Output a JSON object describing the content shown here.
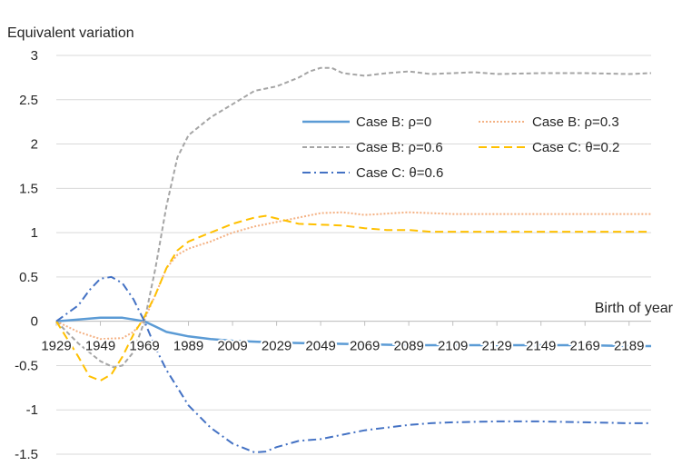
{
  "chart_data": {
    "type": "line",
    "ylabel": "Equivalent variation",
    "xlabel": "Birth of year",
    "ylim": [
      -1.5,
      3
    ],
    "y_ticks": [
      -1.5,
      -1,
      -0.5,
      0,
      0.5,
      1,
      1.5,
      2,
      2.5,
      3
    ],
    "y_tick_labels": [
      "-1.5",
      "-1",
      "-0.5",
      "0",
      "0.5",
      "1",
      "1.5",
      "2",
      "2.5",
      "3"
    ],
    "xlim": [
      1929,
      2199
    ],
    "x_tick_values": [
      1929,
      1949,
      1969,
      1989,
      2009,
      2029,
      2049,
      2069,
      2089,
      2109,
      2129,
      2149,
      2169,
      2189
    ],
    "x_tick_labels": [
      "1929",
      "1949",
      "1969",
      "1989",
      "2009",
      "2029",
      "2049",
      "2069",
      "2089",
      "2109",
      "2129",
      "2149",
      "2169",
      "2189"
    ],
    "grid": "horizontal",
    "legend_position": "upper-right inside plot",
    "series": [
      {
        "name": "Case B: ρ=0",
        "color": "#5b9bd5",
        "style": "solid",
        "x": [
          1929,
          1939,
          1949,
          1959,
          1964,
          1969,
          1974,
          1979,
          1989,
          1999,
          2009,
          2029,
          2049,
          2069,
          2089,
          2109,
          2129,
          2149,
          2169,
          2189,
          2199
        ],
        "y": [
          0,
          0.02,
          0.04,
          0.04,
          0.02,
          0,
          -0.06,
          -0.12,
          -0.17,
          -0.2,
          -0.22,
          -0.24,
          -0.25,
          -0.26,
          -0.27,
          -0.27,
          -0.27,
          -0.27,
          -0.27,
          -0.28,
          -0.28
        ]
      },
      {
        "name": "Case B: ρ=0.3",
        "color": "#f4b183",
        "style": "dotted",
        "x": [
          1929,
          1939,
          1949,
          1959,
          1964,
          1969,
          1974,
          1979,
          1984,
          1989,
          1999,
          2009,
          2019,
          2029,
          2039,
          2049,
          2059,
          2069,
          2089,
          2109,
          2129,
          2149,
          2169,
          2189,
          2199
        ],
        "y": [
          0,
          -0.12,
          -0.2,
          -0.19,
          -0.12,
          0.02,
          0.3,
          0.6,
          0.75,
          0.82,
          0.9,
          1.0,
          1.07,
          1.12,
          1.17,
          1.22,
          1.23,
          1.2,
          1.23,
          1.21,
          1.21,
          1.21,
          1.21,
          1.21,
          1.21
        ]
      },
      {
        "name": "Case B: ρ=0.6",
        "color": "#a5a5a5",
        "style": "dashed",
        "x": [
          1929,
          1939,
          1949,
          1955,
          1959,
          1964,
          1969,
          1974,
          1979,
          1984,
          1989,
          1999,
          2009,
          2019,
          2029,
          2039,
          2044,
          2049,
          2054,
          2059,
          2069,
          2079,
          2089,
          2099,
          2109,
          2119,
          2129,
          2149,
          2169,
          2189,
          2199
        ],
        "y": [
          0,
          -0.25,
          -0.45,
          -0.52,
          -0.5,
          -0.35,
          0,
          0.6,
          1.3,
          1.85,
          2.1,
          2.3,
          2.45,
          2.6,
          2.65,
          2.75,
          2.82,
          2.86,
          2.86,
          2.8,
          2.77,
          2.8,
          2.82,
          2.79,
          2.8,
          2.81,
          2.79,
          2.8,
          2.8,
          2.79,
          2.8
        ]
      },
      {
        "name": "Case C: θ=0.2",
        "color": "#ffc000",
        "style": "dash",
        "x": [
          1929,
          1939,
          1944,
          1949,
          1954,
          1959,
          1964,
          1969,
          1974,
          1979,
          1984,
          1989,
          1999,
          2009,
          2019,
          2024,
          2029,
          2039,
          2049,
          2059,
          2069,
          2079,
          2089,
          2099,
          2109,
          2129,
          2149,
          2169,
          2189,
          2199
        ],
        "y": [
          0,
          -0.4,
          -0.62,
          -0.67,
          -0.6,
          -0.4,
          -0.15,
          0.05,
          0.3,
          0.6,
          0.8,
          0.9,
          1.0,
          1.1,
          1.17,
          1.19,
          1.16,
          1.1,
          1.09,
          1.08,
          1.05,
          1.03,
          1.03,
          1.01,
          1.01,
          1.01,
          1.01,
          1.01,
          1.01,
          1.01
        ]
      },
      {
        "name": "Case C: θ=0.6",
        "color": "#4472c4",
        "style": "dash-dot",
        "x": [
          1929,
          1939,
          1944,
          1949,
          1954,
          1959,
          1964,
          1969,
          1974,
          1979,
          1989,
          1999,
          2009,
          2019,
          2024,
          2029,
          2039,
          2049,
          2059,
          2069,
          2079,
          2089,
          2099,
          2109,
          2129,
          2149,
          2169,
          2189,
          2199
        ],
        "y": [
          0,
          0.18,
          0.35,
          0.48,
          0.5,
          0.43,
          0.25,
          0,
          -0.3,
          -0.55,
          -0.95,
          -1.2,
          -1.38,
          -1.48,
          -1.47,
          -1.42,
          -1.35,
          -1.33,
          -1.28,
          -1.23,
          -1.2,
          -1.17,
          -1.15,
          -1.14,
          -1.13,
          -1.13,
          -1.14,
          -1.15,
          -1.15
        ]
      }
    ]
  }
}
